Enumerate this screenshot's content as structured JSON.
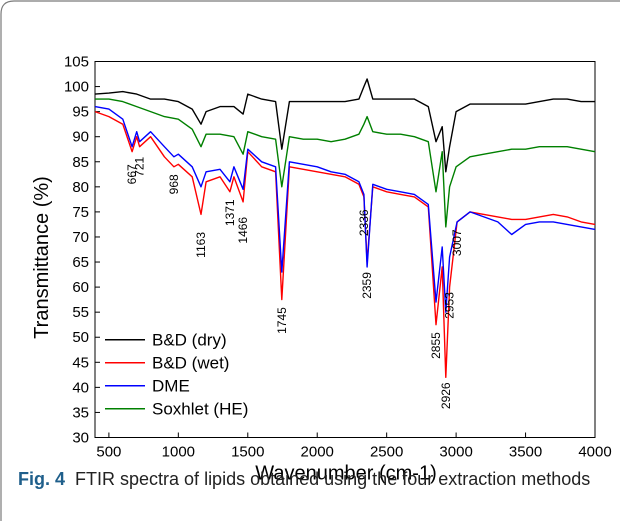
{
  "figure": {
    "label": "Fig. 4",
    "caption": "FTIR spectra of lipids obtained using the four extraction methods"
  },
  "chart_data": {
    "type": "line",
    "xlabel": "Wavenumber (cm-1)",
    "ylabel": "Transmittance (%)",
    "xlim": [
      400,
      4000
    ],
    "ylim": [
      30,
      105
    ],
    "x_ticks": [
      500,
      1000,
      1500,
      2000,
      2500,
      3000,
      3500,
      4000
    ],
    "y_ticks": [
      30,
      35,
      40,
      45,
      50,
      55,
      60,
      65,
      70,
      75,
      80,
      85,
      90,
      95,
      100,
      105
    ],
    "legend_position": "bottom-left",
    "series": [
      {
        "name": "B&D (dry)",
        "color": "#000000",
        "x": [
          400,
          500,
          600,
          700,
          800,
          900,
          1000,
          1100,
          1163,
          1200,
          1300,
          1400,
          1466,
          1500,
          1600,
          1700,
          1745,
          1800,
          1900,
          2000,
          2100,
          2200,
          2300,
          2336,
          2359,
          2400,
          2500,
          2600,
          2700,
          2800,
          2855,
          2900,
          2926,
          2953,
          3000,
          3100,
          3200,
          3300,
          3400,
          3500,
          3600,
          3700,
          3800,
          3900,
          4000
        ],
        "y": [
          98.5,
          98.7,
          99,
          98.5,
          97.5,
          97.5,
          97,
          95.5,
          92.5,
          95,
          96,
          96,
          94.5,
          98.5,
          97.5,
          97,
          87.5,
          97,
          97,
          97,
          97,
          97,
          97.5,
          100,
          101.5,
          97.5,
          97.5,
          97.5,
          97.5,
          96,
          89,
          92,
          83,
          88,
          95,
          96.5,
          96.5,
          96.5,
          96.5,
          96.5,
          97,
          97.5,
          97.5,
          97,
          97
        ]
      },
      {
        "name": "B&D (wet)",
        "color": "#ff0000",
        "x": [
          400,
          500,
          600,
          667,
          700,
          721,
          800,
          900,
          968,
          1000,
          1100,
          1163,
          1200,
          1300,
          1371,
          1400,
          1466,
          1500,
          1600,
          1700,
          1745,
          1800,
          1900,
          2000,
          2100,
          2200,
          2300,
          2336,
          2359,
          2400,
          2500,
          2600,
          2700,
          2800,
          2855,
          2900,
          2926,
          2953,
          3007,
          3100,
          3200,
          3300,
          3400,
          3500,
          3600,
          3700,
          3800,
          3900,
          4000
        ],
        "y": [
          95,
          94,
          92.5,
          87,
          90,
          88,
          90,
          86,
          84,
          84.5,
          82,
          74.5,
          81,
          82,
          79,
          82,
          77,
          87,
          84,
          83,
          57.5,
          84,
          83.5,
          83,
          82.5,
          82,
          80.5,
          78,
          65,
          80,
          79,
          78.5,
          78,
          76,
          52.5,
          64,
          42,
          60,
          73,
          75,
          74.5,
          74,
          73.5,
          73.5,
          74,
          74.5,
          74,
          73,
          72.5
        ]
      },
      {
        "name": "DME",
        "color": "#0000ff",
        "x": [
          400,
          500,
          600,
          667,
          700,
          721,
          800,
          900,
          968,
          1000,
          1100,
          1163,
          1200,
          1300,
          1371,
          1400,
          1466,
          1500,
          1600,
          1700,
          1745,
          1800,
          1900,
          2000,
          2100,
          2200,
          2300,
          2336,
          2359,
          2400,
          2500,
          2600,
          2700,
          2800,
          2855,
          2900,
          2926,
          2953,
          3007,
          3100,
          3200,
          3300,
          3400,
          3500,
          3600,
          3700,
          3800,
          3900,
          4000
        ],
        "y": [
          96,
          95.5,
          93.5,
          88,
          91,
          89,
          91,
          88,
          86,
          86.5,
          84,
          80,
          83,
          83.5,
          81,
          84,
          79.5,
          87.5,
          85,
          84,
          63,
          85,
          84.5,
          84,
          83,
          82.5,
          81,
          78.5,
          64,
          80.5,
          79.5,
          79,
          78.5,
          76.5,
          57,
          68,
          55,
          66,
          73,
          75,
          74,
          73,
          70.5,
          72.5,
          73,
          73,
          72.5,
          72,
          71.5
        ]
      },
      {
        "name": "Soxhlet (HE)",
        "color": "#008000",
        "x": [
          400,
          500,
          600,
          700,
          800,
          900,
          1000,
          1100,
          1163,
          1200,
          1300,
          1400,
          1466,
          1500,
          1600,
          1700,
          1745,
          1800,
          1900,
          2000,
          2100,
          2200,
          2300,
          2336,
          2359,
          2400,
          2500,
          2600,
          2700,
          2800,
          2855,
          2900,
          2926,
          2953,
          3000,
          3100,
          3200,
          3300,
          3400,
          3500,
          3600,
          3700,
          3800,
          3900,
          4000
        ],
        "y": [
          97.5,
          97.5,
          97,
          96,
          95,
          94,
          93.5,
          91.5,
          88,
          90.5,
          90.5,
          90,
          86.5,
          91,
          90,
          89.5,
          80,
          90,
          89.5,
          89.5,
          89,
          89.5,
          90.5,
          92.5,
          94,
          91,
          90.5,
          90.5,
          90,
          89,
          79,
          87,
          72,
          80,
          84,
          86,
          86.5,
          87,
          87.5,
          87.5,
          88,
          88,
          88,
          87.5,
          87
        ]
      }
    ],
    "annotations": [
      {
        "text": "667",
        "x": 667,
        "y": 84.5
      },
      {
        "text": "721",
        "x": 721,
        "y": 86
      },
      {
        "text": "968",
        "x": 968,
        "y": 82.5
      },
      {
        "text": "1163",
        "x": 1163,
        "y": 71
      },
      {
        "text": "1371",
        "x": 1371,
        "y": 77.5
      },
      {
        "text": "1466",
        "x": 1466,
        "y": 74
      },
      {
        "text": "1745",
        "x": 1745,
        "y": 56
      },
      {
        "text": "2336",
        "x": 2336,
        "y": 75.5
      },
      {
        "text": "2359",
        "x": 2359,
        "y": 63
      },
      {
        "text": "2855",
        "x": 2855,
        "y": 51
      },
      {
        "text": "2926",
        "x": 2926,
        "y": 41
      },
      {
        "text": "2953",
        "x": 2953,
        "y": 59
      },
      {
        "text": "3007",
        "x": 3007,
        "y": 71.5
      }
    ]
  }
}
